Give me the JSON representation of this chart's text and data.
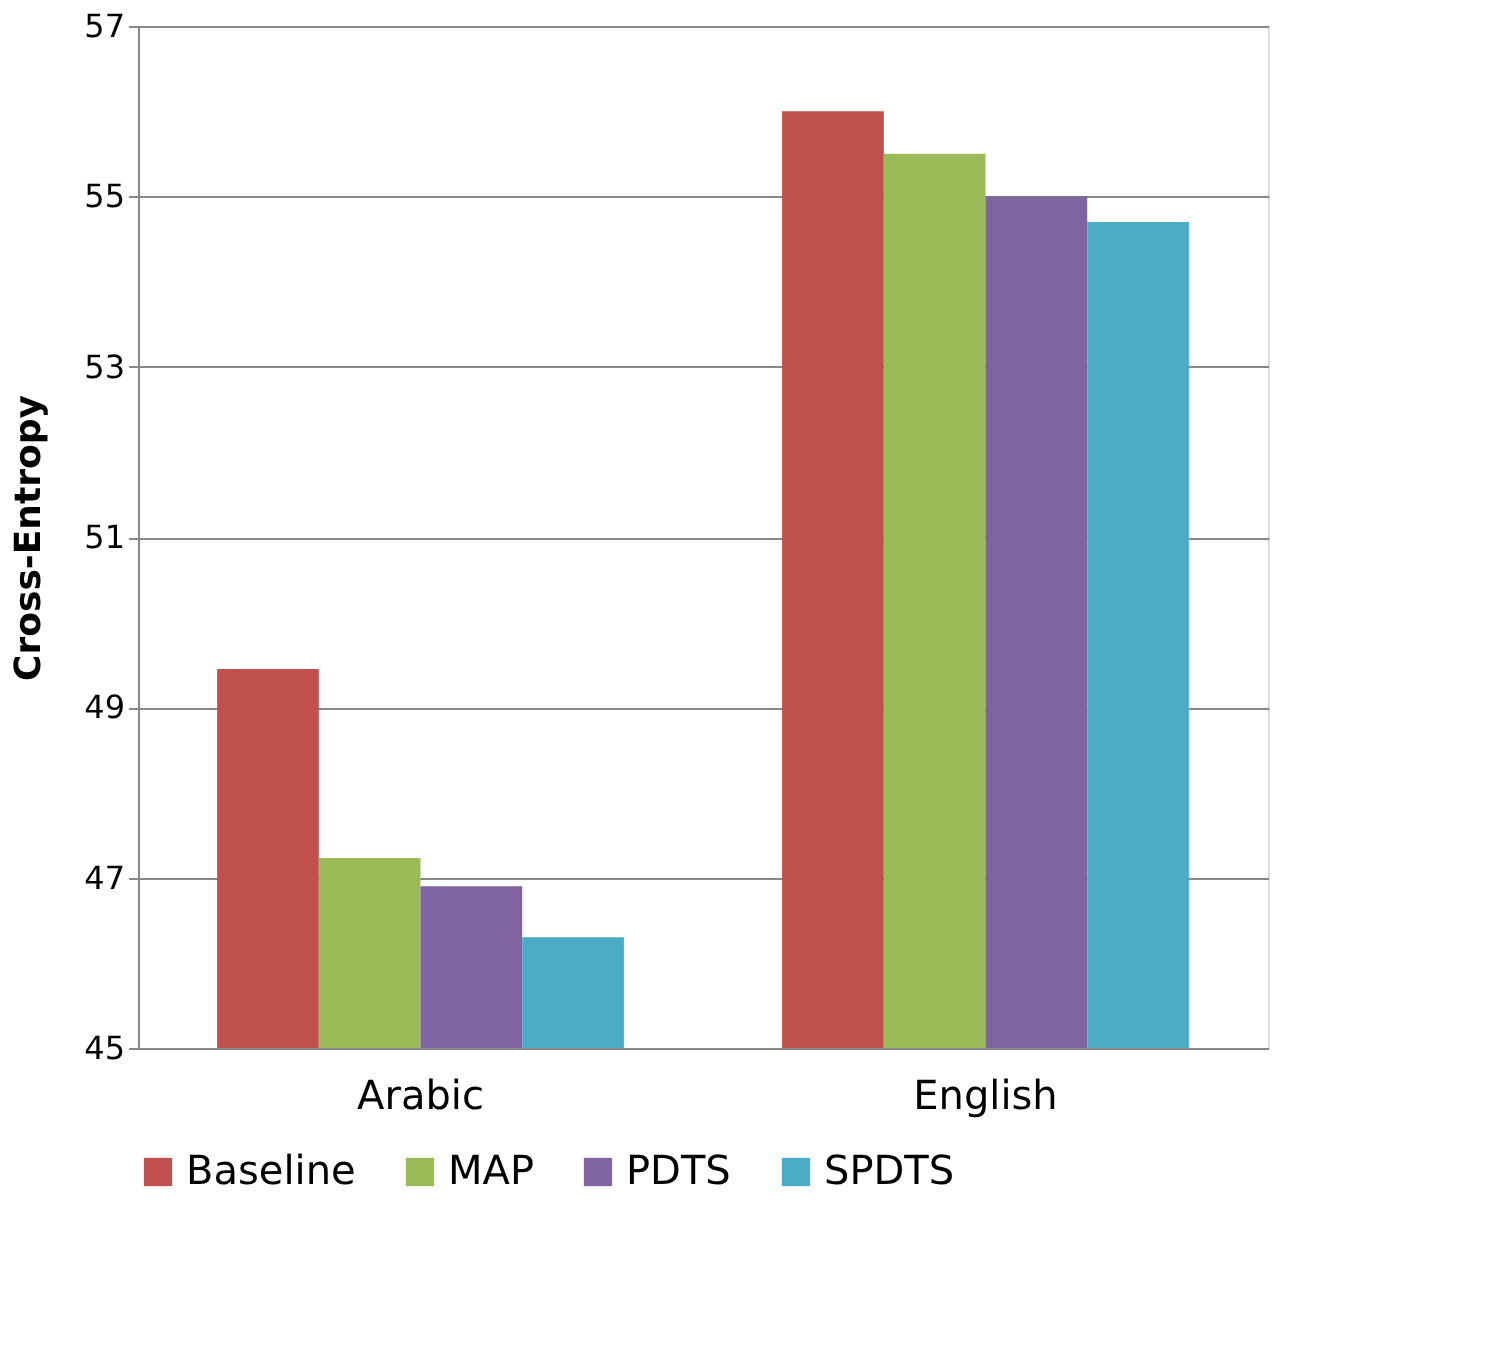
{
  "chart_data": {
    "type": "bar",
    "ylabel": "Cross-Entropy",
    "categories": [
      "Arabic",
      "English"
    ],
    "series": [
      {
        "name": "Baseline",
        "color": "#c0504d",
        "values": [
          49.45,
          56.0
        ]
      },
      {
        "name": "MAP",
        "color": "#9bbb59",
        "values": [
          47.23,
          55.5
        ]
      },
      {
        "name": "PDTS",
        "color": "#8064a2",
        "values": [
          46.9,
          55.0
        ]
      },
      {
        "name": "SPDTS",
        "color": "#4bacc6",
        "values": [
          46.3,
          54.7
        ]
      }
    ],
    "ylim": [
      45,
      57
    ],
    "yticks": [
      45,
      47,
      49,
      51,
      53,
      55,
      57
    ],
    "grid": "y",
    "legend": "bottom"
  }
}
